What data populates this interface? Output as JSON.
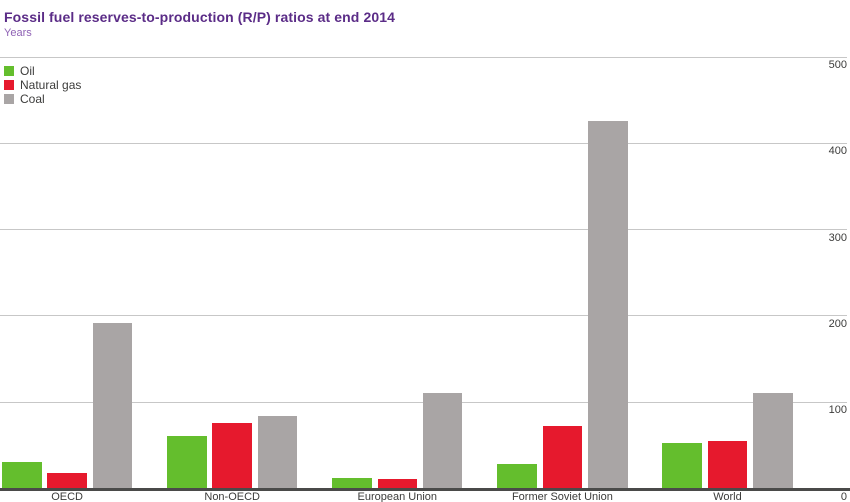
{
  "title": "Fossil fuel reserves-to-production (R/P) ratios at end 2014",
  "subtitle": "Years",
  "legend": {
    "position": "top-left",
    "items": [
      {
        "label": "Oil",
        "color": "#64be2d"
      },
      {
        "label": "Natural gas",
        "color": "#e6192d"
      },
      {
        "label": "Coal",
        "color": "#a9a5a5"
      }
    ]
  },
  "chart_data": {
    "type": "bar",
    "title": "Fossil fuel reserves-to-production (R/P) ratios at end 2014",
    "ylabel": "Years",
    "xlabel": "",
    "categories": [
      "OECD",
      "Non-OECD",
      "European Union",
      "Former Soviet Union",
      "World"
    ],
    "series": [
      {
        "name": "Oil",
        "color": "#64be2d",
        "values": [
          30,
          60,
          12,
          28,
          52
        ]
      },
      {
        "name": "Natural gas",
        "color": "#e6192d",
        "values": [
          17,
          75,
          11,
          72,
          54
        ]
      },
      {
        "name": "Coal",
        "color": "#a9a5a5",
        "values": [
          191,
          84,
          110,
          426,
          110
        ]
      }
    ],
    "ylim": [
      0,
      500
    ],
    "yticks": [
      500,
      400,
      300,
      200,
      100,
      0
    ],
    "grid": true,
    "legend_position": "top-left"
  },
  "colors": {
    "title": "#5b2c87",
    "subtitle": "#8f62b5",
    "text": "#3c3c3b",
    "gridline": "#c7c7c7",
    "axis_line": "#4a4a49",
    "background": "#ffffff"
  }
}
